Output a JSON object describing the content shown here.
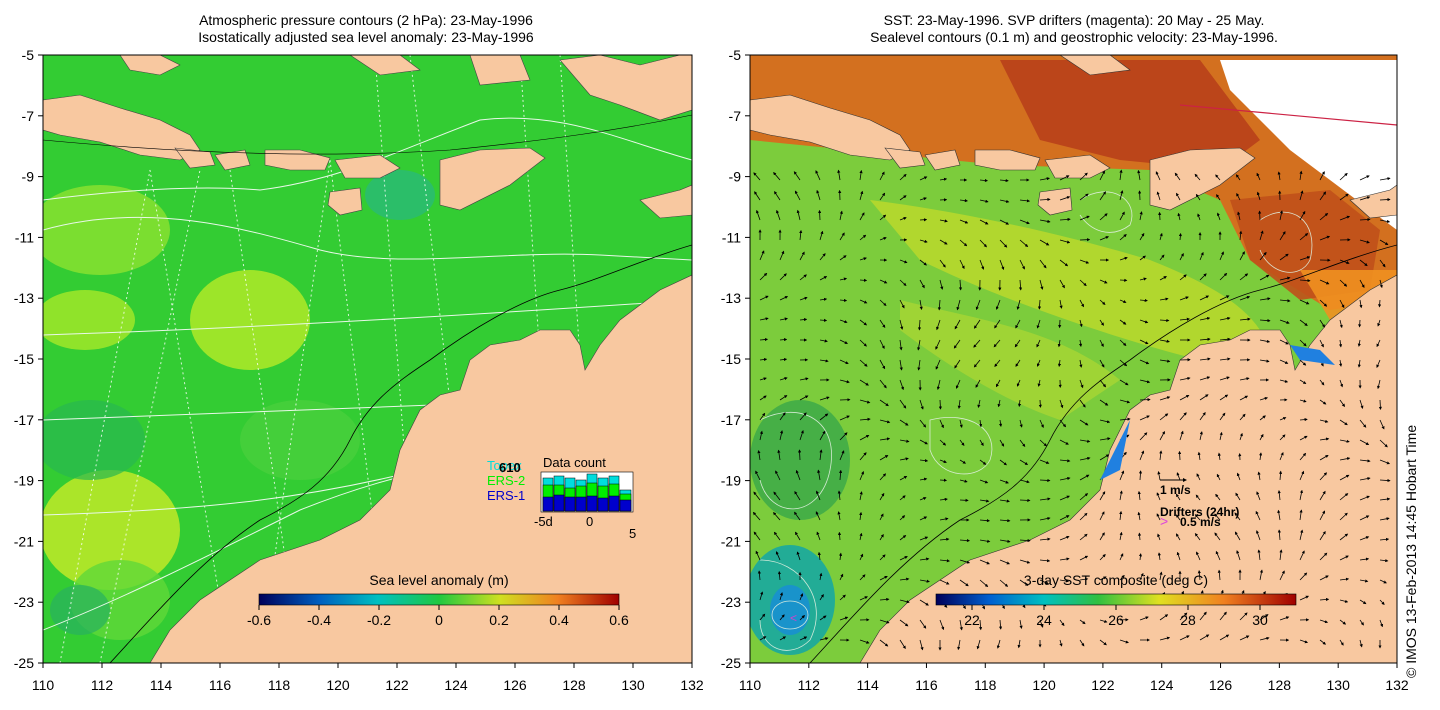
{
  "left_panel": {
    "title_line1": "Atmospheric pressure contours (2 hPa): 23-May-1996",
    "title_line2": "Isostatically adjusted sea level anomaly: 23-May-1996",
    "colorbar": {
      "label": "Sea level anomaly (m)",
      "ticks": [
        "-0.6",
        "-0.4",
        "-0.2",
        "0",
        "0.2",
        "0.4",
        "0.6"
      ],
      "range": [
        -0.6,
        0.6
      ]
    },
    "legend": {
      "title": "Data count",
      "series": [
        "Topex",
        "ERS-2",
        "ERS-1"
      ],
      "count": "610",
      "axis": [
        "-5d",
        "0",
        "5"
      ],
      "colors": {
        "Topex": "#00e0e0",
        "ERS-2": "#00ee00",
        "ERS-1": "#0000cc"
      }
    }
  },
  "right_panel": {
    "title_line1": "SST: 23-May-1996. SVP drifters (magenta): 20 May - 25 May.",
    "title_line2": "Sealevel contours (0.1 m) and geostrophic velocity: 23-May-1996.",
    "colorbar": {
      "label": "3-day SST composite (deg C)",
      "ticks": [
        "22",
        "24",
        "26",
        "28",
        "30"
      ],
      "range": [
        21,
        31
      ]
    },
    "velocity_scale": "1 m/s",
    "drifter_label": "Drifters (24hr)",
    "drifter_scale": "0.5 m/s",
    "drifter_color": "#dd44dd"
  },
  "axes": {
    "x_ticks": [
      "110",
      "112",
      "114",
      "116",
      "118",
      "120",
      "122",
      "124",
      "126",
      "128",
      "130",
      "132"
    ],
    "y_ticks": [
      "-5",
      "-7",
      "-9",
      "-11",
      "-13",
      "-15",
      "-17",
      "-19",
      "-21",
      "-23",
      "-25"
    ],
    "lon_range": [
      110,
      132
    ],
    "lat_range": [
      -25,
      -5
    ]
  },
  "colors": {
    "land": "#f8c8a0",
    "ocean_sla": "#33cc33",
    "sst_warm": "#cc4400"
  },
  "copyright": "© IMOS 13-Feb-2013 14:45 Hobart Time"
}
